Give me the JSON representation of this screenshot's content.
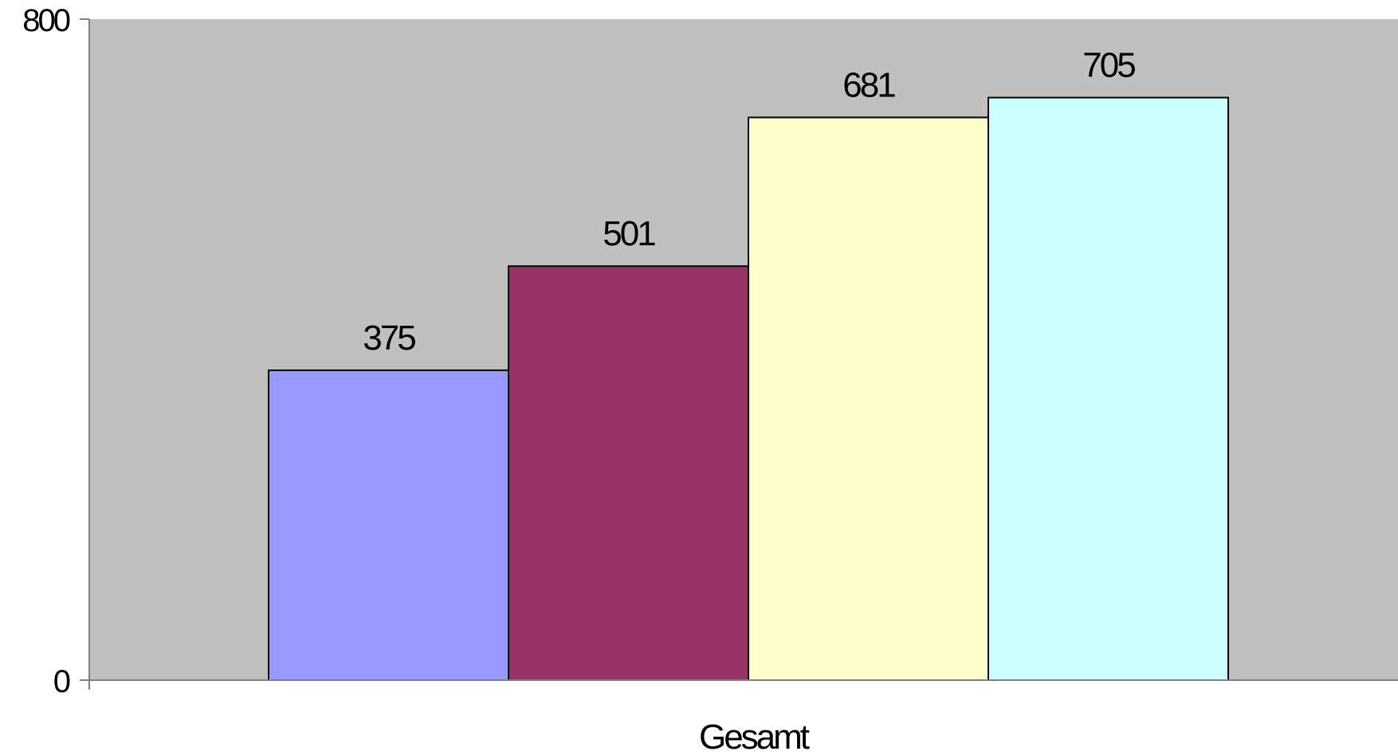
{
  "chart_data": {
    "type": "bar",
    "categories": [
      "Gesamt"
    ],
    "series": [
      {
        "values": [
          375
        ],
        "color": "#9999ff"
      },
      {
        "values": [
          501
        ],
        "color": "#993366"
      },
      {
        "values": [
          681
        ],
        "color": "#ffffcc"
      },
      {
        "values": [
          705
        ],
        "color": "#ccffff"
      }
    ],
    "ylim": [
      0,
      800
    ],
    "yticks": [
      0,
      800
    ],
    "plot_background": "#c0c0c0",
    "grid": false,
    "legend": "none",
    "data_labels": true
  }
}
